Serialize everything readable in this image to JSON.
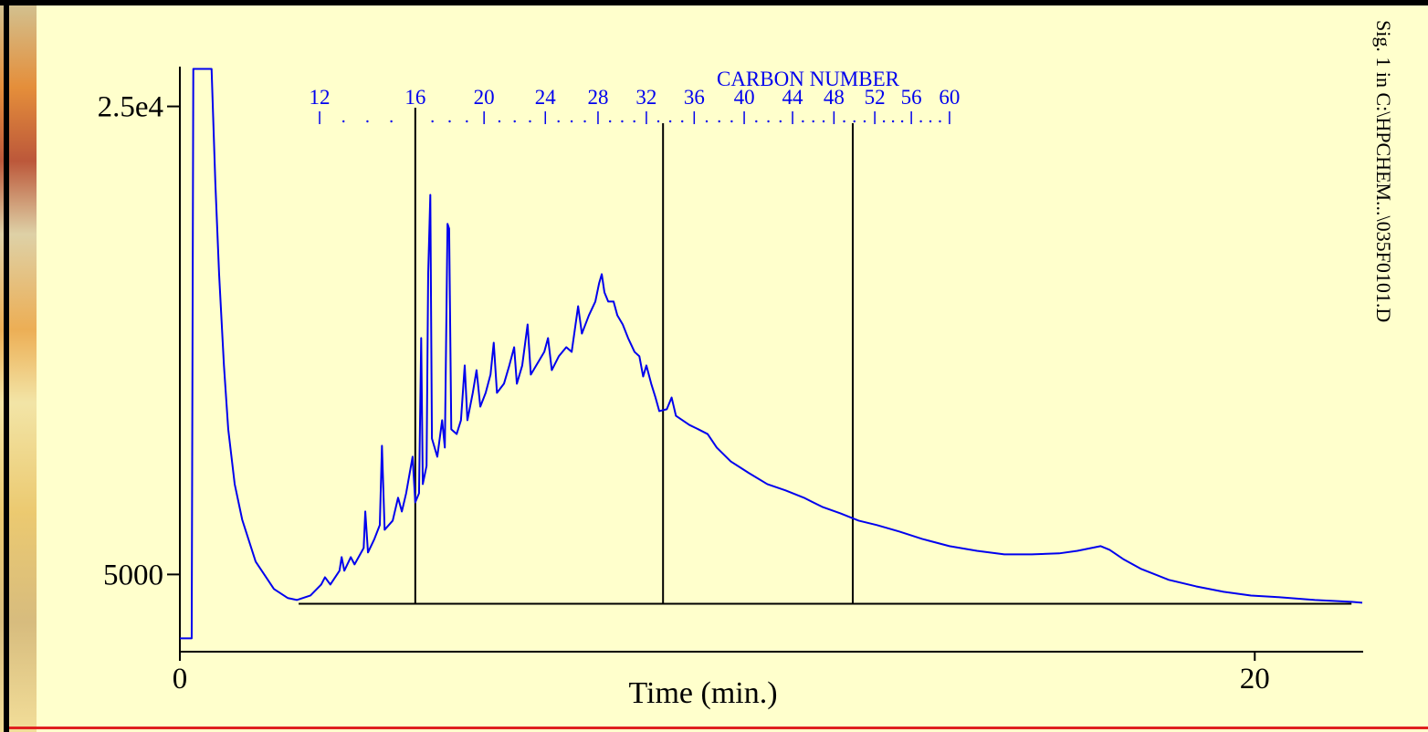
{
  "chart_data": {
    "type": "line",
    "xlabel": "Time (min.)",
    "side_label": "Sig. 1 in C:\\HPCHEM...\\035F0101.D",
    "xlim": [
      0,
      22
    ],
    "ylim": [
      1700,
      26700
    ],
    "xticks": [
      0,
      20
    ],
    "yticks": [
      {
        "value": 25000,
        "label": "2.5e4"
      },
      5000
    ],
    "grid": false,
    "color": "#0000ee",
    "x": [
      0,
      0.22,
      0.25,
      0.59,
      0.66,
      0.73,
      0.82,
      0.9,
      1.02,
      1.16,
      1.41,
      1.75,
      2.01,
      2.18,
      2.43,
      2.63,
      2.7,
      2.8,
      2.97,
      3.01,
      3.06,
      3.18,
      3.25,
      3.42,
      3.45,
      3.5,
      3.62,
      3.72,
      3.76,
      3.81,
      3.96,
      4.06,
      4.13,
      4.21,
      4.33,
      4.38,
      4.45,
      4.49,
      4.52,
      4.59,
      4.62,
      4.66,
      4.69,
      4.79,
      4.88,
      4.93,
      4.98,
      5.01,
      5.05,
      5.15,
      5.23,
      5.3,
      5.35,
      5.45,
      5.52,
      5.59,
      5.69,
      5.78,
      5.84,
      5.9,
      6.03,
      6.13,
      6.22,
      6.27,
      6.37,
      6.47,
      6.53,
      6.68,
      6.78,
      6.85,
      6.92,
      7.05,
      7.19,
      7.29,
      7.41,
      7.48,
      7.61,
      7.73,
      7.8,
      7.85,
      7.9,
      7.97,
      8.07,
      8.14,
      8.24,
      8.34,
      8.46,
      8.55,
      8.62,
      8.68,
      8.77,
      8.85,
      8.92,
      9.06,
      9.15,
      9.23,
      9.48,
      9.65,
      9.82,
      9.99,
      10.25,
      10.59,
      10.93,
      11.27,
      11.61,
      11.95,
      12.29,
      12.63,
      12.97,
      13.39,
      13.81,
      14.32,
      14.83,
      15.34,
      15.85,
      16.36,
      16.7,
      17.13,
      17.3,
      17.55,
      17.89,
      18.4,
      18.91,
      19.42,
      19.93,
      20.44,
      21.12,
      21.8,
      22.0
    ],
    "values": [
      2270,
      2270,
      26600,
      26600,
      21730,
      17830,
      13930,
      11200,
      8860,
      7340,
      5550,
      4380,
      3990,
      3910,
      4100,
      4570,
      4880,
      4570,
      5160,
      5740,
      5160,
      5740,
      5430,
      6130,
      7690,
      5940,
      6520,
      7110,
      10500,
      6910,
      7300,
      8280,
      7690,
      8470,
      10030,
      8080,
      8470,
      15100,
      8860,
      9640,
      17830,
      21220,
      10810,
      10030,
      11590,
      10420,
      19980,
      19780,
      11200,
      11000,
      11590,
      13930,
      11590,
      12760,
      13730,
      12170,
      12760,
      13540,
      14900,
      12760,
      13150,
      13930,
      14710,
      13150,
      13930,
      15680,
      13540,
      14120,
      14510,
      15100,
      13730,
      14320,
      14710,
      14510,
      16460,
      15290,
      16070,
      16660,
      17440,
      17830,
      17050,
      16660,
      16660,
      16070,
      15680,
      15100,
      14510,
      14320,
      13460,
      13930,
      13150,
      12560,
      11980,
      12060,
      12560,
      11780,
      11390,
      11200,
      11000,
      10420,
      9830,
      9330,
      8860,
      8590,
      8280,
      7890,
      7610,
      7300,
      7110,
      6830,
      6520,
      6210,
      6010,
      5860,
      5860,
      5900,
      6010,
      6210,
      6050,
      5660,
      5230,
      4770,
      4490,
      4260,
      4100,
      4030,
      3910,
      3830,
      3790
    ],
    "baseline": {
      "x": [
        2.21,
        21.8
      ],
      "y": 3750
    },
    "markers": [
      4.38,
      8.99,
      12.52
    ],
    "carbon_scale": {
      "title": "CARBON NUMBER",
      "labels": [
        "12",
        "16",
        "20",
        "24",
        "28",
        "32",
        "36",
        "40",
        "44",
        "48",
        "52",
        "56",
        "60"
      ],
      "x": [
        2.6,
        4.38,
        5.66,
        6.8,
        7.78,
        8.68,
        9.57,
        10.5,
        11.4,
        12.17,
        12.93,
        13.61,
        14.32
      ]
    }
  }
}
